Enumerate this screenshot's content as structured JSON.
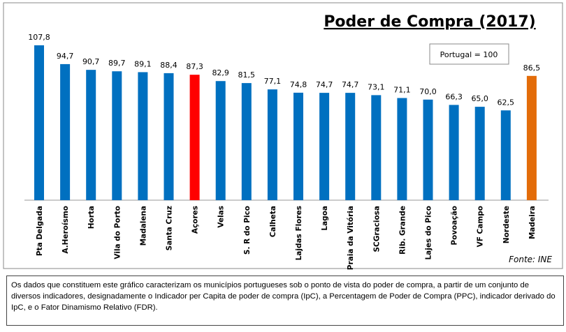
{
  "chart_data": {
    "type": "bar",
    "title": "Poder de Compra (2017)",
    "annotation": "Portugal = 100",
    "source": "Fonte: INE",
    "categories": [
      "Pta Delgada",
      "A.Heroísmo",
      "Horta",
      "Vila do Porto",
      "Madalena",
      "Santa Cruz",
      "Açores",
      "Velas",
      "S. R do Pico",
      "Calheta",
      "Lajdas Flores",
      "Lagoa",
      "Praia da Vitória",
      "SCGraciosa",
      "Rib. Grande",
      "Lajes do Pico",
      "Povoação",
      "VF Campo",
      "Nordeste",
      "Madeira"
    ],
    "values": [
      107.8,
      94.7,
      90.7,
      89.7,
      89.1,
      88.4,
      87.3,
      82.9,
      81.5,
      77.1,
      74.8,
      74.7,
      74.7,
      73.1,
      71.1,
      70.0,
      66.3,
      65.0,
      62.5,
      86.5
    ],
    "value_labels": [
      "107,8",
      "94,7",
      "90,7",
      "89,7",
      "89,1",
      "88,4",
      "87,3",
      "82,9",
      "81,5",
      "77,1",
      "74,8",
      "74,7",
      "74,7",
      "73,1",
      "71,1",
      "70,0",
      "66,3",
      "65,0",
      "62,5",
      "86,5"
    ],
    "colors": [
      "#0070c0",
      "#0070c0",
      "#0070c0",
      "#0070c0",
      "#0070c0",
      "#0070c0",
      "#ff0000",
      "#0070c0",
      "#0070c0",
      "#0070c0",
      "#0070c0",
      "#0070c0",
      "#0070c0",
      "#0070c0",
      "#0070c0",
      "#0070c0",
      "#0070c0",
      "#0070c0",
      "#0070c0",
      "#e36c09"
    ]
  },
  "note": "Os dados que constituem este gráfico caracterizam os municípios portugueses sob o ponto de vista do poder de compra, a partir de um conjunto de diversos indicadores, designadamente o Indicador per Capita de poder de compra (IpC), a Percentagem de Poder de Compra (PPC), indicador derivado do IpC, e o Fator Dinamismo Relativo (FDR)."
}
